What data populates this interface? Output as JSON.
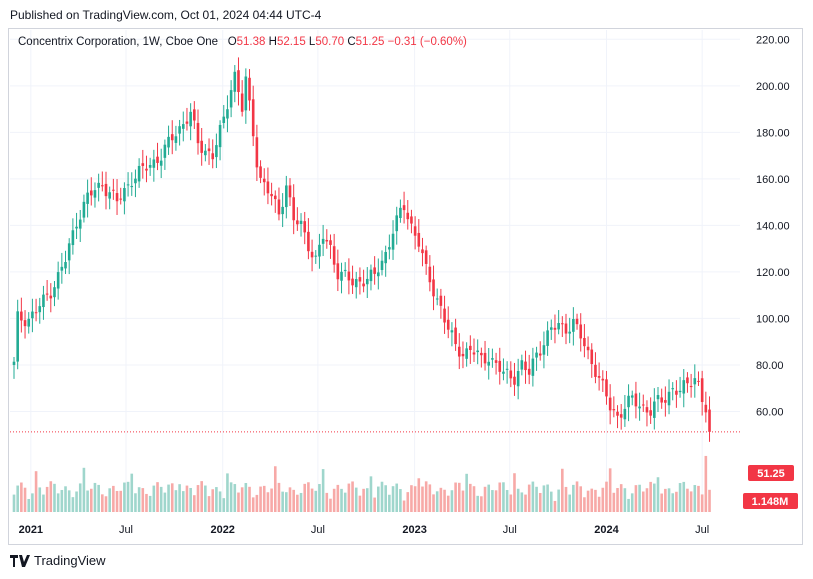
{
  "header": {
    "published": "Published on TradingView.com, Oct 01, 2024 04:44 UTC-4"
  },
  "legend": {
    "symbol": "Concentrix Corporation, 1W, Cboe One",
    "o_label": "O",
    "o_value": "51.38",
    "h_label": "H",
    "h_value": "52.15",
    "l_label": "L",
    "l_value": "50.70",
    "c_label": "C",
    "c_value": "51.25",
    "change": "−0.31 (−0.60%)"
  },
  "footer": {
    "brand": "TradingView",
    "logo_icon": "tradingview-logo-icon"
  },
  "colors": {
    "up": "#22ab94",
    "down": "#f23645",
    "up_vol": "#9fd6cc",
    "down_vol": "#f7a9a7",
    "grid": "#f0f3fa",
    "last_price_bg": "#f23645"
  },
  "chart_data": {
    "type": "candlestick",
    "title": "Concentrix Corporation, 1W, Cboe One",
    "ylim": [
      40,
      224
    ],
    "y_ticks": [
      "220.00",
      "200.00",
      "180.00",
      "160.00",
      "140.00",
      "120.00",
      "100.00",
      "80.00",
      "60.00"
    ],
    "y_tick_values": [
      220,
      200,
      180,
      160,
      140,
      120,
      100,
      80,
      60
    ],
    "x_ticks": [
      {
        "label": "2021",
        "date": "2021-01-01",
        "bold": true
      },
      {
        "label": "Jul",
        "date": "2021-07-01",
        "bold": false
      },
      {
        "label": "2022",
        "date": "2022-01-01",
        "bold": true
      },
      {
        "label": "Jul",
        "date": "2022-07-01",
        "bold": false
      },
      {
        "label": "2023",
        "date": "2023-01-01",
        "bold": true
      },
      {
        "label": "Jul",
        "date": "2023-07-01",
        "bold": false
      },
      {
        "label": "2024",
        "date": "2024-01-01",
        "bold": true
      },
      {
        "label": "Jul",
        "date": "2024-07-01",
        "bold": false
      }
    ],
    "first_week": "2020-11-30",
    "last_price": "51.25",
    "last_volume": "1.148M",
    "volume_max_m": 3.0,
    "close_anchors": [
      {
        "w": 0,
        "c": 80
      },
      {
        "w": 1,
        "c": 100
      },
      {
        "w": 4,
        "c": 100
      },
      {
        "w": 6,
        "c": 103
      },
      {
        "w": 10,
        "c": 112
      },
      {
        "w": 12,
        "c": 118
      },
      {
        "w": 14,
        "c": 125
      },
      {
        "w": 17,
        "c": 142
      },
      {
        "w": 20,
        "c": 152
      },
      {
        "w": 24,
        "c": 158
      },
      {
        "w": 28,
        "c": 150
      },
      {
        "w": 32,
        "c": 160
      },
      {
        "w": 36,
        "c": 165
      },
      {
        "w": 40,
        "c": 170
      },
      {
        "w": 44,
        "c": 180
      },
      {
        "w": 48,
        "c": 188
      },
      {
        "w": 50,
        "c": 175
      },
      {
        "w": 54,
        "c": 170
      },
      {
        "w": 57,
        "c": 185
      },
      {
        "w": 59,
        "c": 200
      },
      {
        "w": 60,
        "c": 205
      },
      {
        "w": 62,
        "c": 190
      },
      {
        "w": 63,
        "c": 202
      },
      {
        "w": 65,
        "c": 180
      },
      {
        "w": 66,
        "c": 168
      },
      {
        "w": 67,
        "c": 160
      },
      {
        "w": 70,
        "c": 152
      },
      {
        "w": 72,
        "c": 145
      },
      {
        "w": 74,
        "c": 158
      },
      {
        "w": 76,
        "c": 142
      },
      {
        "w": 78,
        "c": 140
      },
      {
        "w": 80,
        "c": 132
      },
      {
        "w": 82,
        "c": 125
      },
      {
        "w": 84,
        "c": 135
      },
      {
        "w": 86,
        "c": 130
      },
      {
        "w": 88,
        "c": 120
      },
      {
        "w": 90,
        "c": 118
      },
      {
        "w": 92,
        "c": 115
      },
      {
        "w": 95,
        "c": 117
      },
      {
        "w": 98,
        "c": 118
      },
      {
        "w": 101,
        "c": 128
      },
      {
        "w": 103,
        "c": 138
      },
      {
        "w": 105,
        "c": 145
      },
      {
        "w": 106,
        "c": 148
      },
      {
        "w": 108,
        "c": 140
      },
      {
        "w": 110,
        "c": 133
      },
      {
        "w": 112,
        "c": 120
      },
      {
        "w": 114,
        "c": 112
      },
      {
        "w": 116,
        "c": 105
      },
      {
        "w": 118,
        "c": 95
      },
      {
        "w": 120,
        "c": 88
      },
      {
        "w": 122,
        "c": 85
      },
      {
        "w": 124,
        "c": 87
      },
      {
        "w": 127,
        "c": 82
      },
      {
        "w": 129,
        "c": 84
      },
      {
        "w": 131,
        "c": 80
      },
      {
        "w": 133,
        "c": 76
      },
      {
        "w": 136,
        "c": 75
      },
      {
        "w": 138,
        "c": 80
      },
      {
        "w": 140,
        "c": 76
      },
      {
        "w": 142,
        "c": 85
      },
      {
        "w": 144,
        "c": 90
      },
      {
        "w": 146,
        "c": 95
      },
      {
        "w": 148,
        "c": 97
      },
      {
        "w": 150,
        "c": 96
      },
      {
        "w": 152,
        "c": 98
      },
      {
        "w": 154,
        "c": 92
      },
      {
        "w": 156,
        "c": 85
      },
      {
        "w": 158,
        "c": 78
      },
      {
        "w": 160,
        "c": 70
      },
      {
        "w": 162,
        "c": 62
      },
      {
        "w": 164,
        "c": 58
      },
      {
        "w": 166,
        "c": 62
      },
      {
        "w": 168,
        "c": 65
      },
      {
        "w": 171,
        "c": 62
      },
      {
        "w": 173,
        "c": 60
      },
      {
        "w": 175,
        "c": 64
      },
      {
        "w": 177,
        "c": 66
      },
      {
        "w": 179,
        "c": 70
      },
      {
        "w": 181,
        "c": 68
      },
      {
        "w": 183,
        "c": 72
      },
      {
        "w": 185,
        "c": 75
      },
      {
        "w": 186,
        "c": 72
      },
      {
        "w": 187,
        "c": 65
      },
      {
        "w": 188,
        "c": 60
      },
      {
        "w": 189,
        "c": 51.25
      }
    ]
  }
}
